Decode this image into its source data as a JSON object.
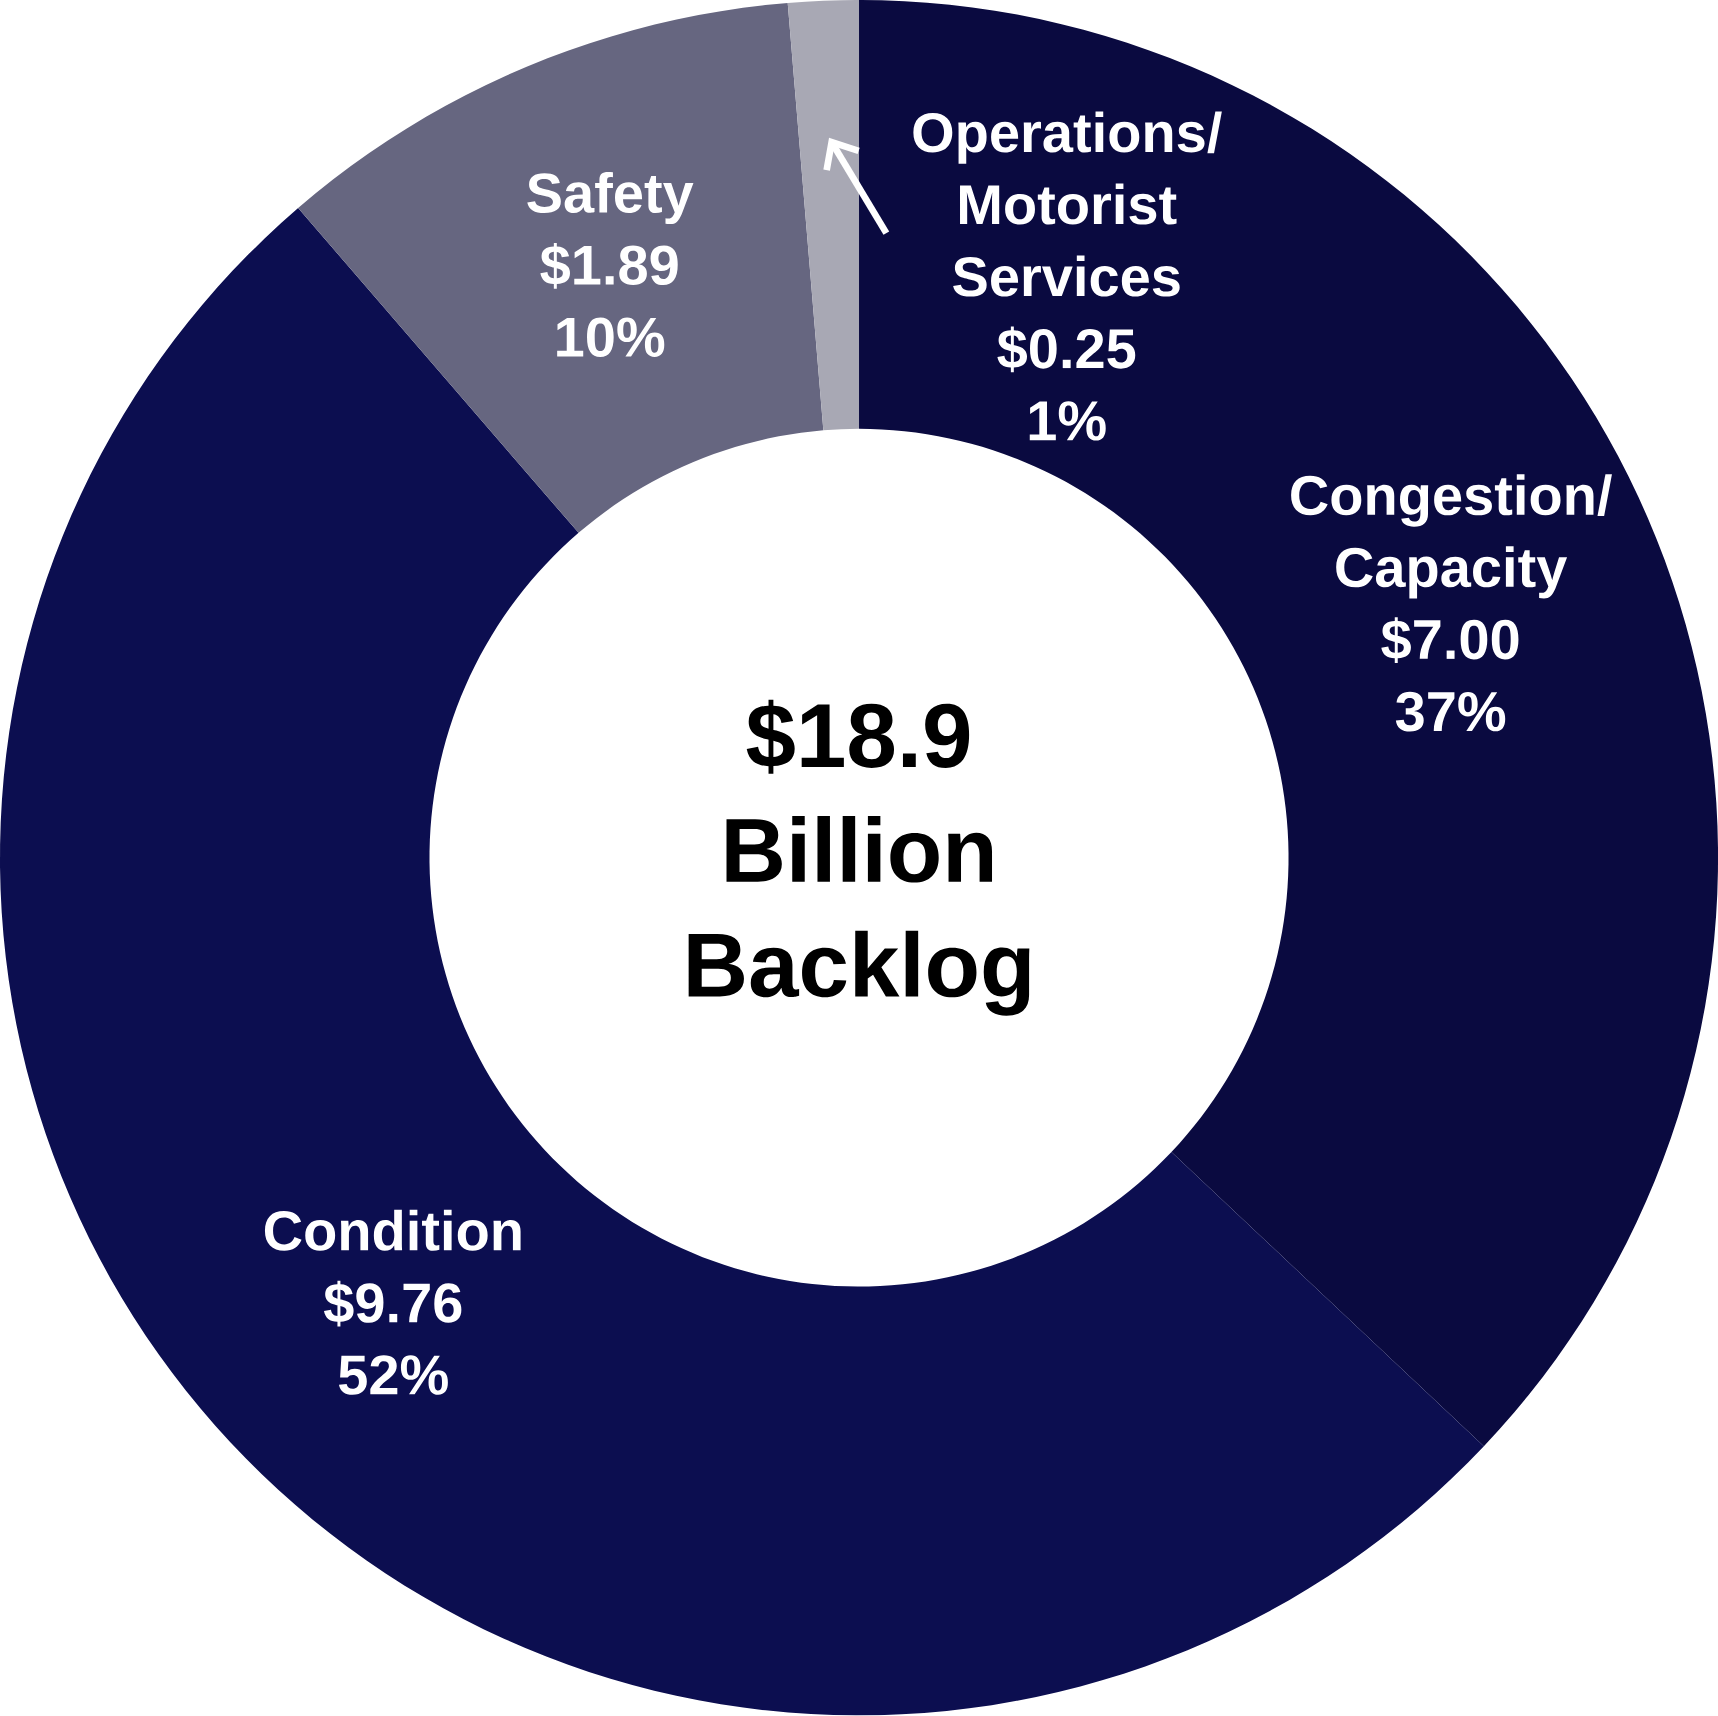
{
  "chart_data": {
    "type": "donut",
    "title": "$18.9 Billion Backlog",
    "categories": [
      "Congestion/ Capacity",
      "Condition",
      "Safety",
      "Operations/ Motorist Services"
    ],
    "values": [
      7.0,
      9.76,
      1.89,
      0.25
    ],
    "colors": [
      "#0a0a40",
      "#0c0e50",
      "#666680",
      "#a8a8b4"
    ],
    "value_labels": [
      "$7.00",
      "$9.76",
      "$1.89",
      "$0.25"
    ],
    "annotations": [
      {
        "text": "37%",
        "x": "Congestion/ Capacity"
      },
      {
        "text": "52%",
        "x": "Condition"
      },
      {
        "text": "10%",
        "x": "Safety"
      },
      {
        "text": "1%",
        "x": "Operations/ Motorist Services"
      }
    ]
  }
}
